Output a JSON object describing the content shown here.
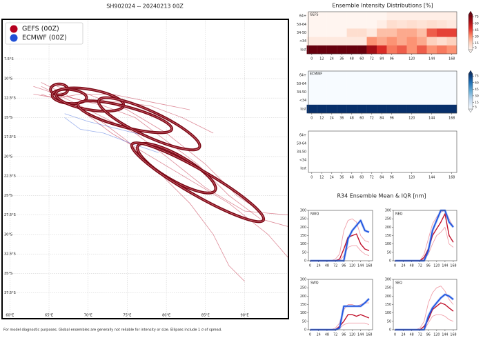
{
  "chart_data": [
    {
      "type": "map",
      "title": "SH902024 -- 20240213 00Z",
      "xlim": [
        59,
        95.6
      ],
      "ylim": [
        -40.8,
        -2.4
      ],
      "xticks": [
        {
          "value": 60,
          "label": "60°E"
        },
        {
          "value": 65,
          "label": "65°E"
        },
        {
          "value": 70,
          "label": "70°E"
        },
        {
          "value": 75,
          "label": "75°E"
        },
        {
          "value": 80,
          "label": "80°E"
        },
        {
          "value": 85,
          "label": "85°E"
        },
        {
          "value": 90,
          "label": "90°E"
        }
      ],
      "yticks": [
        {
          "value": -7.5,
          "label": "7.5°S"
        },
        {
          "value": -10,
          "label": "10°S"
        },
        {
          "value": -12.5,
          "label": "12.5°S"
        },
        {
          "value": -15,
          "label": "15°S"
        },
        {
          "value": -17.5,
          "label": "17.5°S"
        },
        {
          "value": -20,
          "label": "20°S"
        },
        {
          "value": -22.5,
          "label": "22.5°S"
        },
        {
          "value": -25,
          "label": "25°S"
        },
        {
          "value": -27.5,
          "label": "27.5°S"
        },
        {
          "value": -30,
          "label": "30°S"
        },
        {
          "value": -32.5,
          "label": "32.5°S"
        },
        {
          "value": -35,
          "label": "35°S"
        },
        {
          "value": -37.5,
          "label": "37.5°S"
        }
      ],
      "grid": true,
      "series": [
        {
          "name": "GEFS (00Z)",
          "color": "#b5001f",
          "tracks": [
            {
              "x": [
                64,
                66,
                68,
                72,
                76,
                80,
                84,
                88,
                92,
                95.6
              ],
              "y": [
                -10.5,
                -11.5,
                -12.5,
                -13.5,
                -15,
                -18,
                -21,
                -25,
                -28,
                -29
              ]
            },
            {
              "x": [
                63,
                66,
                70,
                74,
                78,
                82,
                86
              ],
              "y": [
                -11,
                -12,
                -13,
                -13,
                -13.5,
                -15,
                -17
              ]
            },
            {
              "x": [
                64,
                67,
                71,
                75,
                79,
                83,
                86,
                88,
                90
              ],
              "y": [
                -12,
                -13,
                -15,
                -18,
                -22,
                -26,
                -30,
                -34,
                -36
              ]
            },
            {
              "x": [
                63,
                66,
                69,
                73,
                78,
                83
              ],
              "y": [
                -12,
                -12.5,
                -12,
                -12,
                -13,
                -14
              ]
            },
            {
              "x": [
                64,
                68,
                72,
                76,
                80,
                85,
                90,
                95.6
              ],
              "y": [
                -11,
                -13,
                -15,
                -17,
                -20,
                -24,
                -27,
                -27.5
              ]
            },
            {
              "x": [
                65,
                69,
                73,
                78,
                83,
                88,
                93,
                95.6
              ],
              "y": [
                -12,
                -14,
                -17,
                -20,
                -23,
                -26,
                -30,
                -33
              ]
            },
            {
              "x": [
                66,
                70,
                75,
                80,
                85,
                89,
                92
              ],
              "y": [
                -11,
                -12,
                -14,
                -17,
                -21,
                -25,
                -27
              ]
            }
          ],
          "ellipses": [
            {
              "lon": 66.3,
              "lat": -11.4,
              "rx": 1.1,
              "ry": 0.7,
              "angle": 0
            },
            {
              "lon": 67.6,
              "lat": -12.3,
              "rx": 2.2,
              "ry": 0.9,
              "angle": 5
            },
            {
              "lon": 70.2,
              "lat": -12.7,
              "rx": 4.4,
              "ry": 1.3,
              "angle": 10
            },
            {
              "lon": 74.7,
              "lat": -14.9,
              "rx": 6.2,
              "ry": 1.3,
              "angle": 15
            },
            {
              "lon": 77.8,
              "lat": -15.8,
              "rx": 7.1,
              "ry": 1.6,
              "angle": 25
            },
            {
              "lon": 81.3,
              "lat": -21.5,
              "rx": 5.7,
              "ry": 1.6,
              "angle": 30
            },
            {
              "lon": 84.0,
              "lat": -23.3,
              "rx": 9.7,
              "ry": 1.6,
              "angle": 30
            }
          ]
        },
        {
          "name": "ECMWF (00Z)",
          "color": "#1f4fd6",
          "tracks": [
            {
              "x": [
                67,
                69,
                72,
                76,
                79
              ],
              "y": [
                -15,
                -16.5,
                -17,
                -18.5,
                -19.5
              ]
            },
            {
              "x": [
                67,
                70,
                74,
                78
              ],
              "y": [
                -14.5,
                -15.5,
                -16.5,
                -17.5
              ]
            }
          ]
        }
      ],
      "legend": "upper left",
      "note": "For model diagnostic purposes. Global ensembles are generally not reliable for intensity or size. Ellipses include 1 σ of spread."
    },
    {
      "type": "heatmap",
      "title": "Ensemble Intensity Distributions [%]",
      "label": "GEFS",
      "rows": [
        "64+",
        "50-64",
        "34-50",
        "<34",
        "lost"
      ],
      "x": [
        0,
        12,
        24,
        36,
        48,
        60,
        72,
        84,
        96,
        108,
        120,
        132,
        144,
        156,
        168
      ],
      "xlim": [
        -4,
        174
      ],
      "xticks": [
        0,
        12,
        24,
        36,
        48,
        60,
        72,
        84,
        96,
        120,
        144,
        168
      ],
      "z": [
        [
          0,
          0,
          0,
          0,
          0,
          0,
          0,
          0,
          3,
          3,
          3,
          3,
          3,
          3,
          3
        ],
        [
          0,
          0,
          0,
          0,
          0,
          0,
          0,
          3,
          10,
          8,
          10,
          8,
          10,
          8,
          5
        ],
        [
          0,
          0,
          0,
          0,
          10,
          10,
          5,
          20,
          20,
          25,
          25,
          20,
          40,
          45,
          45
        ],
        [
          5,
          5,
          5,
          5,
          5,
          5,
          30,
          25,
          30,
          25,
          30,
          25,
          15,
          10,
          15
        ],
        [
          95,
          95,
          95,
          95,
          95,
          95,
          65,
          50,
          35,
          40,
          30,
          40,
          30,
          35,
          30
        ]
      ],
      "zlim": [
        0,
        80
      ],
      "colorscale": [
        "#fff5f0",
        "#fdd0bb",
        "#fc8a6a",
        "#e0302a",
        "#a50f15",
        "#67000d"
      ],
      "cticks": [
        5,
        15,
        30,
        45,
        60,
        75
      ]
    },
    {
      "type": "heatmap",
      "label": "ECMWF",
      "rows": [
        "64+",
        "50-64",
        "34-50",
        "<34",
        "lost"
      ],
      "x": [
        0,
        12,
        24,
        36,
        48,
        60,
        72,
        84,
        96,
        108,
        120,
        132,
        144,
        156,
        168
      ],
      "xlim": [
        -4,
        174
      ],
      "xticks": [
        0,
        12,
        24,
        36,
        48,
        60,
        72,
        84,
        96,
        120,
        144,
        168
      ],
      "z": [
        [
          0,
          0,
          0,
          0,
          0,
          0,
          0,
          0,
          0,
          0,
          0,
          0,
          0,
          0,
          0
        ],
        [
          0,
          0,
          0,
          0,
          0,
          0,
          0,
          0,
          0,
          0,
          0,
          0,
          0,
          0,
          0
        ],
        [
          0,
          0,
          0,
          0,
          0,
          0,
          0,
          0,
          0,
          0,
          0,
          0,
          0,
          0,
          0
        ],
        [
          0,
          0,
          0,
          0,
          0,
          0,
          0,
          0,
          0,
          0,
          0,
          0,
          0,
          0,
          0
        ],
        [
          100,
          100,
          100,
          100,
          100,
          100,
          100,
          100,
          100,
          100,
          100,
          100,
          100,
          100,
          100
        ]
      ],
      "zlim": [
        0,
        80
      ],
      "colorscale": [
        "#f7fbff",
        "#c6dbef",
        "#6baed6",
        "#2171b5",
        "#08306b"
      ],
      "cticks": [
        5,
        15,
        30,
        45,
        60,
        75
      ]
    },
    {
      "type": "heatmap",
      "rows": [
        "64+",
        "50-64",
        "34-50",
        "<34",
        "lost"
      ],
      "xlim": [
        -4,
        174
      ],
      "xticks": [
        0,
        12,
        24,
        36,
        48,
        60,
        72,
        84,
        96,
        120,
        144,
        168
      ]
    },
    {
      "type": "line",
      "title": "R34 Ensemble Mean & IQR [nm]",
      "label": "NWQ",
      "x": [
        0,
        12,
        24,
        36,
        48,
        60,
        72,
        84,
        96,
        108,
        120,
        132,
        144,
        156,
        168
      ],
      "xlim": [
        -5,
        178
      ],
      "ylim": [
        0,
        300
      ],
      "xticks": [
        0,
        24,
        48,
        72,
        96,
        120,
        144,
        168
      ],
      "yticks": [
        0,
        50,
        100,
        150,
        200,
        250,
        300
      ],
      "series": [
        {
          "color": "#f0a0aa",
          "values": [
            0,
            0,
            0,
            0,
            0,
            0,
            10,
            40,
            180,
            240,
            250,
            230,
            150,
            120,
            110
          ]
        },
        {
          "color": "#f0a0aa",
          "values": [
            0,
            0,
            0,
            0,
            0,
            0,
            0,
            0,
            30,
            80,
            90,
            90,
            60,
            40,
            30
          ]
        },
        {
          "color": "#c0102a",
          "values": [
            0,
            0,
            0,
            0,
            0,
            0,
            0,
            10,
            70,
            140,
            150,
            160,
            100,
            70,
            60
          ]
        },
        {
          "color": "#1f55e0",
          "values": [
            0,
            0,
            0,
            0,
            0,
            0,
            0,
            0,
            0,
            130,
            180,
            210,
            240,
            180,
            170
          ]
        }
      ]
    },
    {
      "type": "line",
      "label": "NEQ",
      "x": [
        0,
        12,
        24,
        36,
        48,
        60,
        72,
        84,
        96,
        108,
        120,
        132,
        144,
        156,
        168
      ],
      "xlim": [
        -5,
        178
      ],
      "ylim": [
        0,
        300
      ],
      "xticks": [
        0,
        24,
        48,
        72,
        96,
        120,
        144,
        168
      ],
      "yticks": [
        0,
        50,
        100,
        150,
        200,
        250,
        300
      ],
      "series": [
        {
          "color": "#f0a0aa",
          "values": [
            0,
            0,
            0,
            0,
            0,
            0,
            0,
            40,
            130,
            220,
            260,
            290,
            300,
            250,
            200
          ]
        },
        {
          "color": "#f0a0aa",
          "values": [
            0,
            0,
            0,
            0,
            0,
            0,
            0,
            10,
            40,
            100,
            150,
            170,
            200,
            100,
            80
          ]
        },
        {
          "color": "#c0102a",
          "values": [
            0,
            0,
            0,
            0,
            0,
            0,
            0,
            20,
            70,
            150,
            190,
            230,
            280,
            150,
            110
          ]
        },
        {
          "color": "#1f55e0",
          "values": [
            0,
            0,
            0,
            0,
            0,
            0,
            0,
            0,
            60,
            180,
            240,
            300,
            300,
            230,
            200
          ]
        }
      ]
    },
    {
      "type": "line",
      "label": "SWQ",
      "x": [
        0,
        12,
        24,
        36,
        48,
        60,
        72,
        84,
        96,
        108,
        120,
        132,
        144,
        156,
        168
      ],
      "xlim": [
        -5,
        178
      ],
      "ylim": [
        0,
        300
      ],
      "xticks": [
        0,
        24,
        48,
        72,
        96,
        120,
        144,
        168
      ],
      "yticks": [
        0,
        50,
        100,
        150,
        200,
        250,
        300
      ],
      "series": [
        {
          "color": "#f0a0aa",
          "values": [
            0,
            0,
            0,
            0,
            0,
            0,
            10,
            40,
            120,
            150,
            150,
            140,
            150,
            160,
            160
          ]
        },
        {
          "color": "#f0a0aa",
          "values": [
            0,
            0,
            0,
            0,
            0,
            0,
            0,
            10,
            30,
            40,
            40,
            40,
            40,
            40,
            30
          ]
        },
        {
          "color": "#c0102a",
          "values": [
            0,
            0,
            0,
            0,
            0,
            0,
            0,
            20,
            50,
            90,
            90,
            80,
            90,
            80,
            70
          ]
        },
        {
          "color": "#1f55e0",
          "values": [
            0,
            0,
            0,
            0,
            0,
            0,
            0,
            10,
            140,
            140,
            140,
            140,
            140,
            160,
            185
          ]
        }
      ]
    },
    {
      "type": "line",
      "label": "SEQ",
      "x": [
        0,
        12,
        24,
        36,
        48,
        60,
        72,
        84,
        96,
        108,
        120,
        132,
        144,
        156,
        168
      ],
      "xlim": [
        -5,
        178
      ],
      "ylim": [
        0,
        300
      ],
      "xticks": [
        0,
        24,
        48,
        72,
        96,
        120,
        144,
        168
      ],
      "yticks": [
        0,
        50,
        100,
        150,
        200,
        250,
        300
      ],
      "series": [
        {
          "color": "#f0a0aa",
          "values": [
            0,
            0,
            0,
            0,
            0,
            0,
            10,
            50,
            160,
            220,
            250,
            260,
            230,
            180,
            150
          ]
        },
        {
          "color": "#f0a0aa",
          "values": [
            0,
            0,
            0,
            0,
            0,
            0,
            0,
            0,
            40,
            80,
            90,
            90,
            80,
            60,
            50
          ]
        },
        {
          "color": "#c0102a",
          "values": [
            0,
            0,
            0,
            0,
            0,
            0,
            0,
            20,
            60,
            120,
            140,
            160,
            150,
            130,
            110
          ]
        },
        {
          "color": "#1f55e0",
          "values": [
            0,
            0,
            0,
            0,
            0,
            0,
            0,
            0,
            80,
            130,
            160,
            190,
            210,
            200,
            180
          ]
        }
      ]
    }
  ]
}
